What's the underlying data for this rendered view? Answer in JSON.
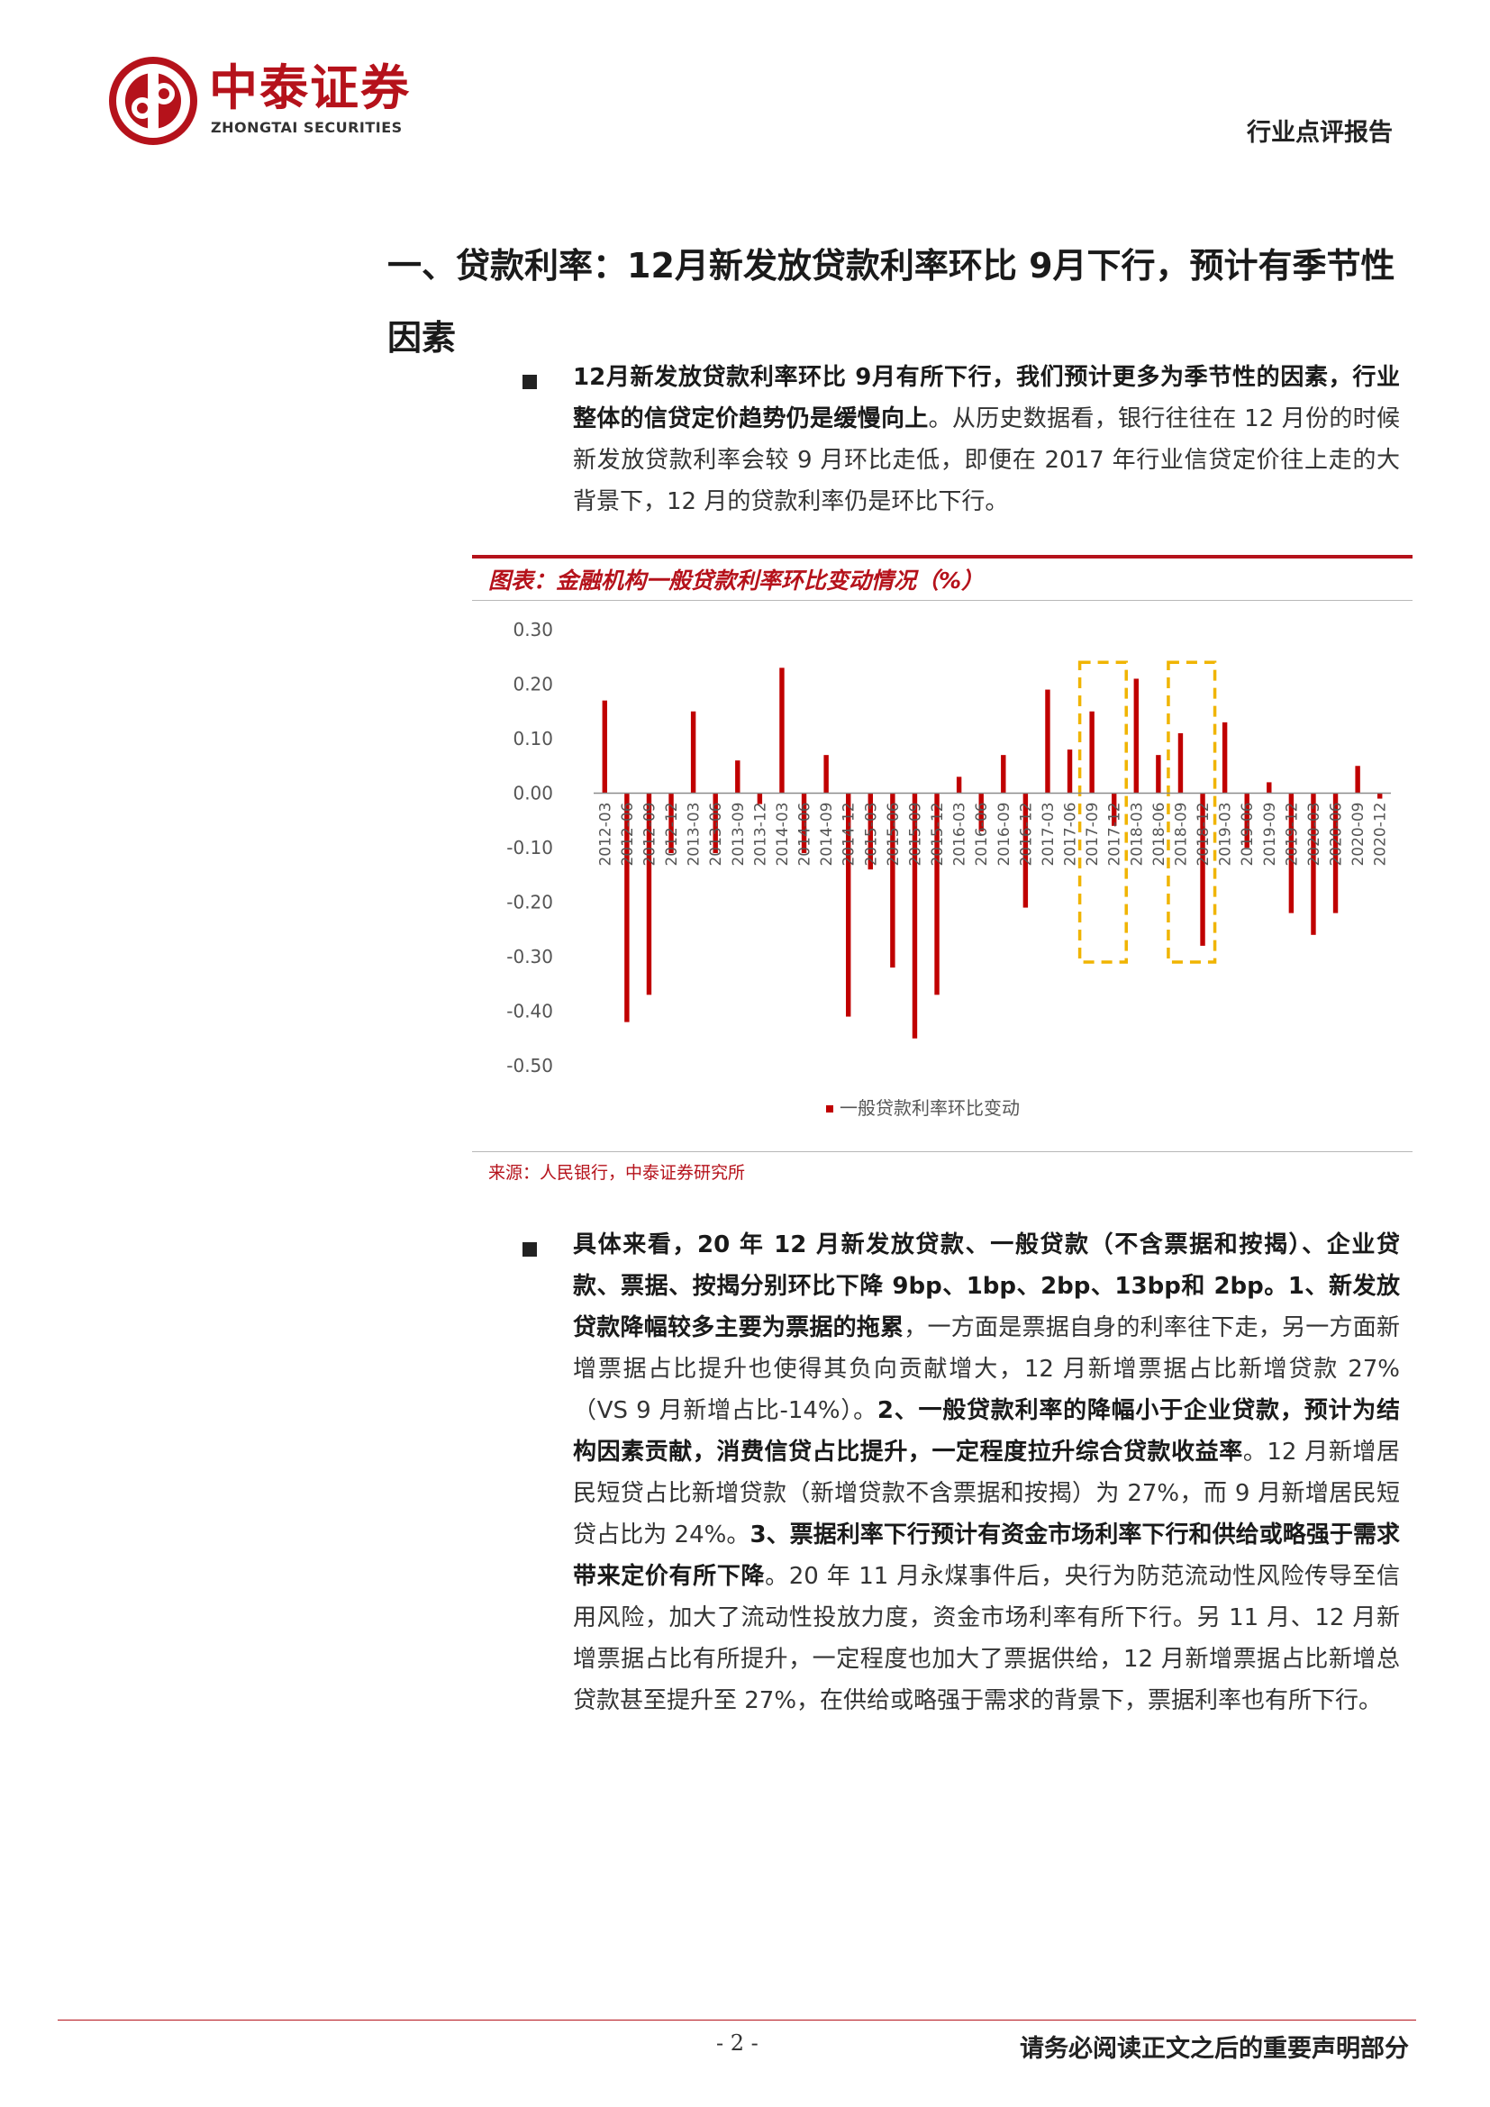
{
  "header": {
    "logo_cn": "中泰证券",
    "logo_en": "ZHONGTAI SECURITIES",
    "report_type": "行业点评报告",
    "brand_color": "#b5121b"
  },
  "section": {
    "title": "一、贷款利率：12月新发放贷款利率环比 9月下行，预计有季节性因素"
  },
  "para1": {
    "bold": "12月新发放贷款利率环比 9月有所下行，我们预计更多为季节性的因素，行业整体的信贷定价趋势仍是缓慢向上",
    "text": "。从历史数据看，银行往往在 12 月份的时候新发放贷款利率会较 9 月环比走低，即便在 2017 年行业信贷定价往上走的大背景下，12 月的贷款利率仍是环比下行。"
  },
  "figure": {
    "title": "图表：金融机构一般贷款利率环比变动情况（%）",
    "source": "来源：人民银行，中泰证券研究所"
  },
  "chart_data": {
    "type": "bar",
    "title": "金融机构一般贷款利率环比变动情况（%）",
    "categories": [
      "2012-03",
      "2012-06",
      "2012-09",
      "2012-12",
      "2013-03",
      "2013-06",
      "2013-09",
      "2013-12",
      "2014-03",
      "2014-06",
      "2014-09",
      "2014-12",
      "2015-03",
      "2015-06",
      "2015-09",
      "2015-12",
      "2016-03",
      "2016-06",
      "2016-09",
      "2016-12",
      "2017-03",
      "2017-06",
      "2017-09",
      "2017-12",
      "2018-03",
      "2018-06",
      "2018-09",
      "2018-12",
      "2019-03",
      "2019-06",
      "2019-09",
      "2019-12",
      "2020-03",
      "2020-06",
      "2020-09",
      "2020-12"
    ],
    "tick_labels": [
      "2012-03",
      "2012-06",
      "2012-09",
      "2012-12",
      "2013-03",
      "2013-06",
      "2013-09",
      "2013-12",
      "2014-03",
      "2014-06",
      "2014-09",
      "2014-12",
      "2015-03",
      "2015-06",
      "2015-09",
      "2015-12",
      "2016-03",
      "2016-06",
      "2016-09",
      "2016-12",
      "2017-03",
      "2017-06",
      "2017-09",
      "2017-12",
      "2018-03",
      "2018-06",
      "2018-09",
      "2018-12",
      "2019-03",
      "2019-06",
      "2019-09",
      "2019-12",
      "2020-03",
      "2020-06",
      "2020-09",
      "2020-12"
    ],
    "series": [
      {
        "name": "一般贷款利率环比变动",
        "color": "#c00000",
        "values": [
          0.17,
          -0.42,
          -0.37,
          -0.11,
          0.15,
          -0.11,
          0.06,
          -0.02,
          0.23,
          -0.11,
          0.07,
          -0.41,
          -0.14,
          -0.32,
          -0.45,
          -0.37,
          0.03,
          -0.07,
          0.07,
          -0.21,
          0.19,
          0.08,
          0.15,
          -0.06,
          0.21,
          0.07,
          0.11,
          -0.28,
          0.13,
          -0.1,
          0.02,
          -0.22,
          -0.26,
          -0.22,
          0.05,
          -0.01
        ]
      }
    ],
    "ylim": [
      -0.5,
      0.3
    ],
    "yticks": [
      0.3,
      0.2,
      0.1,
      0.0,
      -0.1,
      -0.2,
      -0.3,
      -0.4,
      -0.5
    ],
    "ytick_labels": [
      "0.30",
      "0.20",
      "0.10",
      "0.00",
      "-0.10",
      "-0.20",
      "-0.30",
      "-0.40",
      "-0.50"
    ],
    "xlabel": "",
    "ylabel": "",
    "grid": false,
    "legend": "bottom",
    "annotations": [
      {
        "type": "dashed-box",
        "from": "2017-09",
        "to": "2017-12",
        "color": "#f0b400"
      },
      {
        "type": "dashed-box",
        "from": "2018-09",
        "to": "2018-12",
        "color": "#f0b400"
      }
    ]
  },
  "para2": {
    "b1": "具体来看，20 年 12 月新发放贷款、一般贷款（不含票据和按揭）、企业贷款、票据、按揭分别环比下降 9bp、1bp、2bp、13bp和 2bp。1、新发放贷款降幅较多主要为票据的拖累",
    "t1": "，一方面是票据自身的利率往下走，另一方面新增票据占比提升也使得其负向贡献增大，12 月新增票据占比新增贷款 27%（VS 9 月新增占比-14%）。",
    "b2": "2、一般贷款利率的降幅小于企业贷款，预计为结构因素贡献，消费信贷占比提升，一定程度拉升综合贷款收益率",
    "t2": "。12 月新增居民短贷占比新增贷款（新增贷款不含票据和按揭）为 27%，而 9 月新增居民短贷占比为 24%。",
    "b3": "3、票据利率下行预计有资金市场利率下行和供给或略强于需求带来定价有所下降",
    "t3": "。20 年 11 月永煤事件后，央行为防范流动性风险传导至信用风险，加大了流动性投放力度，资金市场利率有所下行。另 11 月、12 月新增票据占比有所提升，一定程度也加大了票据供给，12 月新增票据占比新增总贷款甚至提升至 27%，在供给或略强于需求的背景下，票据利率也有所下行。"
  },
  "footer": {
    "page": "- 2 -",
    "disclaimer": "请务必阅读正文之后的重要声明部分"
  }
}
